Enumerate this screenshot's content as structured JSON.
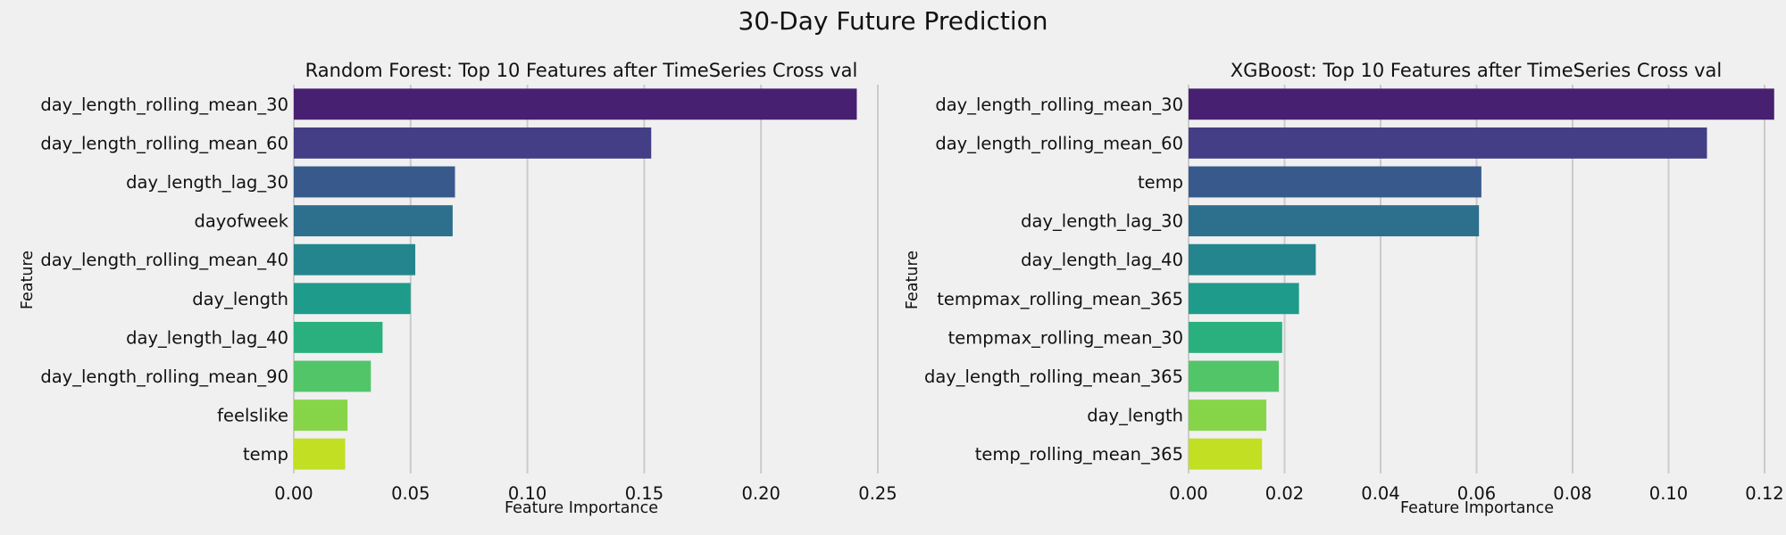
{
  "figure_title": "30-Day Future Prediction",
  "chart_data": [
    {
      "type": "bar",
      "orientation": "horizontal",
      "title": "Random Forest: Top 10 Features after TimeSeries Cross val",
      "xlabel": "Feature Importance",
      "ylabel": "Feature",
      "xlim": [
        0,
        0.25
      ],
      "xticks": [
        "0.00",
        "0.05",
        "0.10",
        "0.15",
        "0.20",
        "0.25"
      ],
      "xtick_values": [
        0,
        0.05,
        0.1,
        0.15,
        0.2,
        0.25
      ],
      "grid": "vertical",
      "categories": [
        "day_length_rolling_mean_30",
        "day_length_rolling_mean_60",
        "day_length_lag_30",
        "dayofweek",
        "day_length_rolling_mean_40",
        "day_length",
        "day_length_lag_40",
        "day_length_rolling_mean_90",
        "feelslike",
        "temp"
      ],
      "values": [
        0.241,
        0.153,
        0.069,
        0.068,
        0.052,
        0.05,
        0.038,
        0.033,
        0.023,
        0.022
      ]
    },
    {
      "type": "bar",
      "orientation": "horizontal",
      "title": "XGBoost: Top 10 Features after TimeSeries Cross val",
      "xlabel": "Feature Importance",
      "ylabel": "Feature",
      "xlim": [
        0,
        0.12
      ],
      "xticks": [
        "0.00",
        "0.02",
        "0.04",
        "0.06",
        "0.08",
        "0.10",
        "0.12"
      ],
      "xtick_values": [
        0,
        0.02,
        0.04,
        0.06,
        0.08,
        0.1,
        0.12
      ],
      "grid": "vertical",
      "categories": [
        "day_length_rolling_mean_30",
        "day_length_rolling_mean_60",
        "temp",
        "day_length_lag_30",
        "day_length_lag_40",
        "tempmax_rolling_mean_365",
        "tempmax_rolling_mean_30",
        "day_length_rolling_mean_365",
        "day_length",
        "temp_rolling_mean_365"
      ],
      "values": [
        0.122,
        0.108,
        0.061,
        0.0605,
        0.0265,
        0.023,
        0.0195,
        0.0188,
        0.0162,
        0.0153
      ]
    }
  ],
  "colors": [
    "#482071",
    "#433e85",
    "#38598c",
    "#2d708e",
    "#25858e",
    "#1e9b8a",
    "#2ab07f",
    "#52c569",
    "#86d549",
    "#c2df23"
  ]
}
